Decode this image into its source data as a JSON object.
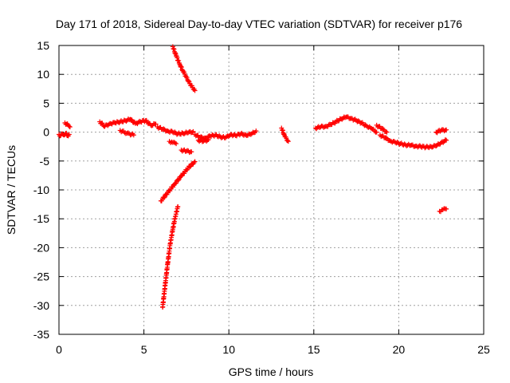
{
  "chart_data": {
    "type": "scatter",
    "title": "Day 171 of 2018, Sidereal Day-to-day VTEC variation (SDTVAR) for receiver p176",
    "xlabel": "GPS time / hours",
    "ylabel": "SDTVAR / TECUs",
    "xlim": [
      0,
      25
    ],
    "ylim": [
      -35,
      15
    ],
    "xticks": [
      0,
      5,
      10,
      15,
      20,
      25
    ],
    "yticks": [
      -35,
      -30,
      -25,
      -20,
      -15,
      -10,
      -5,
      0,
      5,
      10,
      15
    ],
    "grid": true,
    "marker": "plus",
    "color": "#ff0000",
    "series": [
      {
        "segments": [
          {
            "x": [
              0.0,
              0.1,
              0.2,
              0.3,
              0.4,
              0.5,
              0.6
            ],
            "y": [
              -0.4,
              -0.6,
              -0.3,
              -0.5,
              -0.2,
              -0.6,
              -0.4
            ]
          },
          {
            "x": [
              0.35,
              0.45,
              0.55,
              0.65
            ],
            "y": [
              1.6,
              1.4,
              1.2,
              0.9
            ]
          },
          {
            "x": [
              2.4,
              2.7,
              3.0,
              3.3,
              3.6,
              3.9,
              4.2,
              4.5,
              4.8,
              5.1,
              5.4,
              5.7
            ],
            "y": [
              1.8,
              1.0,
              1.5,
              1.6,
              1.8,
              2.0,
              2.2,
              1.5,
              1.8,
              2.0,
              1.2,
              1.4
            ]
          },
          {
            "x": [
              3.6,
              4.0,
              4.4
            ],
            "y": [
              0.3,
              -0.2,
              -0.5
            ]
          },
          {
            "x": [
              5.8,
              6.1,
              6.4,
              6.7,
              7.0,
              7.3,
              7.6,
              7.9
            ],
            "y": [
              0.9,
              0.5,
              0.2,
              0.0,
              -0.3,
              -0.2,
              -0.1,
              0.1
            ]
          },
          {
            "x": [
              6.5,
              6.7,
              6.9
            ],
            "y": [
              -1.6,
              -1.8,
              -2.0
            ]
          },
          {
            "x": [
              7.2,
              7.5,
              7.8
            ],
            "y": [
              -3.1,
              -3.3,
              -3.4
            ]
          },
          {
            "x": [
              8.0,
              8.3,
              8.6,
              8.9,
              9.2,
              9.5,
              9.8,
              10.1,
              10.4,
              10.7,
              11.0,
              11.3,
              11.6
            ],
            "y": [
              -0.4,
              -0.9,
              -1.0,
              -0.7,
              -0.5,
              -0.8,
              -1.0,
              -0.4,
              -0.6,
              -0.3,
              -0.5,
              -0.4,
              0.2
            ]
          },
          {
            "x": [
              8.2,
              8.5,
              8.8
            ],
            "y": [
              -1.4,
              -1.6,
              -1.3
            ]
          },
          {
            "x": [
              13.1,
              13.3,
              13.5
            ],
            "y": [
              0.7,
              -0.8,
              -1.6
            ]
          },
          {
            "x": [
              15.1,
              15.4,
              15.7,
              16.0,
              16.3,
              16.6,
              16.9,
              17.2,
              17.5,
              17.8,
              18.1,
              18.4,
              18.7
            ],
            "y": [
              0.7,
              0.9,
              1.0,
              1.3,
              1.8,
              2.3,
              2.6,
              2.4,
              2.0,
              1.6,
              1.1,
              0.6,
              0.0
            ]
          },
          {
            "x": [
              18.9,
              19.2,
              19.5,
              19.8,
              20.1,
              20.4,
              20.7,
              21.0,
              21.3,
              21.6,
              21.9,
              22.2,
              22.5,
              22.8
            ],
            "y": [
              -0.5,
              -1.0,
              -1.5,
              -1.8,
              -2.0,
              -2.2,
              -2.3,
              -2.4,
              -2.5,
              -2.6,
              -2.5,
              -2.4,
              -1.8,
              -1.4
            ]
          },
          {
            "x": [
              18.7,
              19.0,
              19.3
            ],
            "y": [
              1.2,
              0.6,
              0.0
            ]
          },
          {
            "x": [
              22.2,
              22.5,
              22.8
            ],
            "y": [
              0.0,
              0.3,
              0.4
            ]
          },
          {
            "x": [
              22.4,
              22.6,
              22.8
            ],
            "y": [
              -13.7,
              -13.4,
              -13.3
            ]
          },
          {
            "x": [
              6.7,
              6.9,
              7.1,
              7.3,
              7.5,
              7.7,
              8.0
            ],
            "y": [
              14.8,
              13.2,
              11.8,
              10.6,
              9.5,
              8.4,
              7.2
            ]
          },
          {
            "x": [
              6.0,
              6.4,
              6.8,
              7.2,
              7.6,
              8.0
            ],
            "y": [
              -11.9,
              -10.5,
              -9.0,
              -7.6,
              -6.2,
              -5.1
            ]
          },
          {
            "x": [
              6.1,
              6.25,
              6.4,
              6.55,
              6.7,
              6.85,
              7.0
            ],
            "y": [
              -30.3,
              -26.5,
              -22.7,
              -19.3,
              -16.8,
              -14.6,
              -12.9
            ]
          }
        ]
      }
    ]
  }
}
